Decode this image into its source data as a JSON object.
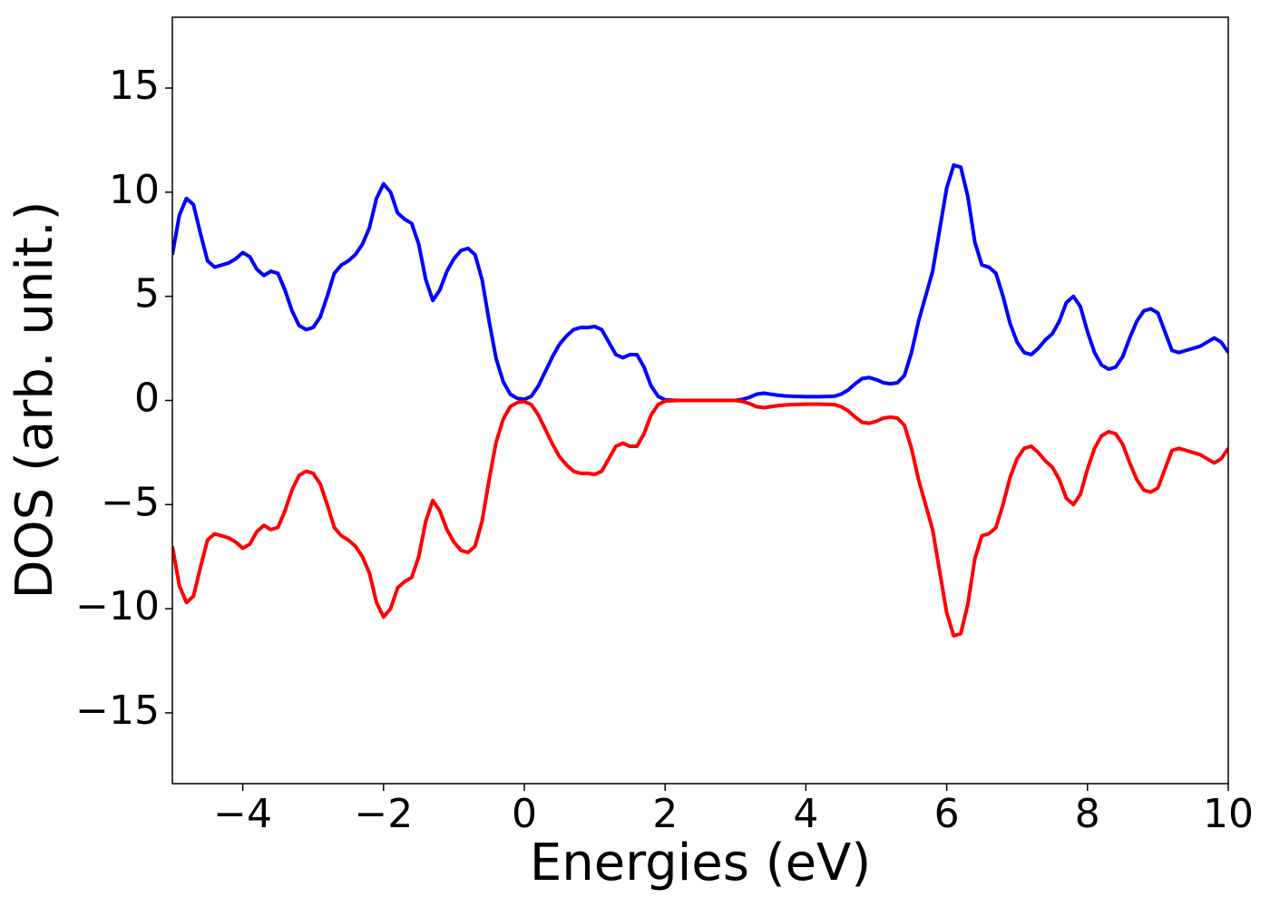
{
  "chart_data": {
    "type": "line",
    "xlabel": "Energies (eV)",
    "ylabel": "DOS (arb. unit.)",
    "xlim": [
      -5,
      10
    ],
    "ylim": [
      -18.4,
      18.4
    ],
    "xticks": [
      {
        "value": -4,
        "label": "−4"
      },
      {
        "value": -2,
        "label": "−2"
      },
      0,
      2,
      4,
      6,
      8,
      10
    ],
    "yticks": [
      {
        "value": -15,
        "label": "−15"
      },
      {
        "value": -10,
        "label": "−10"
      },
      {
        "value": -5,
        "label": "−5"
      },
      0,
      5,
      10,
      15
    ],
    "grid": false,
    "x": [
      -5.0,
      -4.9,
      -4.8,
      -4.7,
      -4.6,
      -4.5,
      -4.4,
      -4.3,
      -4.2,
      -4.1,
      -4.0,
      -3.9,
      -3.8,
      -3.7,
      -3.6,
      -3.5,
      -3.4,
      -3.3,
      -3.2,
      -3.1,
      -3.0,
      -2.9,
      -2.8,
      -2.7,
      -2.6,
      -2.5,
      -2.4,
      -2.3,
      -2.2,
      -2.1,
      -2.0,
      -1.9,
      -1.8,
      -1.7,
      -1.6,
      -1.5,
      -1.4,
      -1.3,
      -1.2,
      -1.1,
      -1.0,
      -0.9,
      -0.8,
      -0.7,
      -0.6,
      -0.5,
      -0.4,
      -0.3,
      -0.2,
      -0.1,
      0.0,
      0.1,
      0.2,
      0.3,
      0.4,
      0.5,
      0.6,
      0.7,
      0.8,
      0.9,
      1.0,
      1.1,
      1.2,
      1.3,
      1.4,
      1.5,
      1.6,
      1.7,
      1.8,
      1.9,
      2.0,
      2.1,
      2.2,
      2.3,
      2.4,
      2.5,
      2.6,
      2.7,
      2.8,
      2.9,
      3.0,
      3.1,
      3.2,
      3.3,
      3.4,
      3.5,
      3.6,
      3.7,
      3.8,
      3.9,
      4.0,
      4.1,
      4.2,
      4.3,
      4.4,
      4.5,
      4.6,
      4.7,
      4.8,
      4.9,
      5.0,
      5.1,
      5.2,
      5.3,
      5.4,
      5.5,
      5.6,
      5.7,
      5.8,
      5.9,
      6.0,
      6.1,
      6.2,
      6.3,
      6.4,
      6.5,
      6.6,
      6.7,
      6.8,
      6.9,
      7.0,
      7.1,
      7.2,
      7.3,
      7.4,
      7.5,
      7.6,
      7.7,
      7.8,
      7.9,
      8.0,
      8.1,
      8.2,
      8.3,
      8.4,
      8.5,
      8.6,
      8.7,
      8.8,
      8.9,
      9.0,
      9.1,
      9.2,
      9.3,
      9.4,
      9.5,
      9.6,
      9.7,
      9.8,
      9.9,
      10.0
    ],
    "series": [
      {
        "color": "#0000ff",
        "values": [
          7.0,
          8.9,
          9.7,
          9.4,
          8.0,
          6.7,
          6.4,
          6.5,
          6.6,
          6.8,
          7.1,
          6.9,
          6.3,
          6.0,
          6.2,
          6.1,
          5.3,
          4.3,
          3.6,
          3.4,
          3.5,
          4.0,
          5.0,
          6.1,
          6.5,
          6.7,
          7.0,
          7.5,
          8.3,
          9.7,
          10.4,
          10.0,
          9.0,
          8.7,
          8.5,
          7.5,
          5.8,
          4.8,
          5.3,
          6.2,
          6.8,
          7.2,
          7.3,
          7.0,
          5.8,
          3.8,
          2.0,
          0.9,
          0.3,
          0.1,
          0.05,
          0.2,
          0.7,
          1.4,
          2.1,
          2.7,
          3.1,
          3.4,
          3.5,
          3.5,
          3.55,
          3.4,
          2.8,
          2.2,
          2.05,
          2.2,
          2.2,
          1.6,
          0.7,
          0.2,
          0.03,
          0.01,
          0,
          0,
          0,
          0,
          0,
          0,
          0,
          0,
          0,
          0.05,
          0.15,
          0.3,
          0.35,
          0.3,
          0.25,
          0.22,
          0.2,
          0.19,
          0.18,
          0.18,
          0.18,
          0.19,
          0.2,
          0.3,
          0.5,
          0.8,
          1.05,
          1.1,
          1.0,
          0.85,
          0.8,
          0.85,
          1.2,
          2.3,
          3.8,
          5.0,
          6.2,
          8.2,
          10.2,
          11.3,
          11.2,
          9.8,
          7.6,
          6.5,
          6.4,
          6.1,
          5.0,
          3.7,
          2.8,
          2.3,
          2.2,
          2.5,
          2.9,
          3.2,
          3.8,
          4.7,
          5.0,
          4.5,
          3.3,
          2.3,
          1.7,
          1.5,
          1.6,
          2.1,
          3.0,
          3.8,
          4.3,
          4.4,
          4.2,
          3.3,
          2.4,
          2.3,
          2.4,
          2.5,
          2.6,
          2.8,
          3.0,
          2.8,
          2.3
        ]
      },
      {
        "color": "#ff0000",
        "values": [
          -7.0,
          -8.9,
          -9.7,
          -9.4,
          -8.0,
          -6.7,
          -6.4,
          -6.5,
          -6.6,
          -6.8,
          -7.1,
          -6.9,
          -6.3,
          -6.0,
          -6.2,
          -6.1,
          -5.3,
          -4.3,
          -3.6,
          -3.4,
          -3.5,
          -4.0,
          -5.0,
          -6.1,
          -6.5,
          -6.7,
          -7.0,
          -7.5,
          -8.3,
          -9.7,
          -10.4,
          -10.0,
          -9.0,
          -8.7,
          -8.5,
          -7.5,
          -5.8,
          -4.8,
          -5.3,
          -6.2,
          -6.8,
          -7.2,
          -7.3,
          -7.0,
          -5.8,
          -3.8,
          -2.0,
          -0.9,
          -0.3,
          -0.1,
          -0.05,
          -0.2,
          -0.7,
          -1.4,
          -2.1,
          -2.7,
          -3.1,
          -3.4,
          -3.5,
          -3.5,
          -3.55,
          -3.4,
          -2.8,
          -2.2,
          -2.05,
          -2.2,
          -2.2,
          -1.6,
          -0.7,
          -0.2,
          -0.03,
          -0.01,
          0,
          0,
          0,
          0,
          0,
          0,
          0,
          0,
          0,
          -0.05,
          -0.15,
          -0.3,
          -0.35,
          -0.3,
          -0.25,
          -0.22,
          -0.2,
          -0.19,
          -0.18,
          -0.18,
          -0.18,
          -0.19,
          -0.2,
          -0.3,
          -0.5,
          -0.8,
          -1.05,
          -1.1,
          -1.0,
          -0.85,
          -0.8,
          -0.85,
          -1.2,
          -2.3,
          -3.8,
          -5.0,
          -6.2,
          -8.2,
          -10.2,
          -11.3,
          -11.2,
          -9.8,
          -7.6,
          -6.5,
          -6.4,
          -6.1,
          -5.0,
          -3.7,
          -2.8,
          -2.3,
          -2.2,
          -2.5,
          -2.9,
          -3.2,
          -3.8,
          -4.7,
          -5.0,
          -4.5,
          -3.3,
          -2.3,
          -1.7,
          -1.5,
          -1.6,
          -2.1,
          -3.0,
          -3.8,
          -4.3,
          -4.4,
          -4.2,
          -3.3,
          -2.4,
          -2.3,
          -2.4,
          -2.5,
          -2.6,
          -2.8,
          -3.0,
          -2.8,
          -2.3
        ]
      }
    ]
  }
}
